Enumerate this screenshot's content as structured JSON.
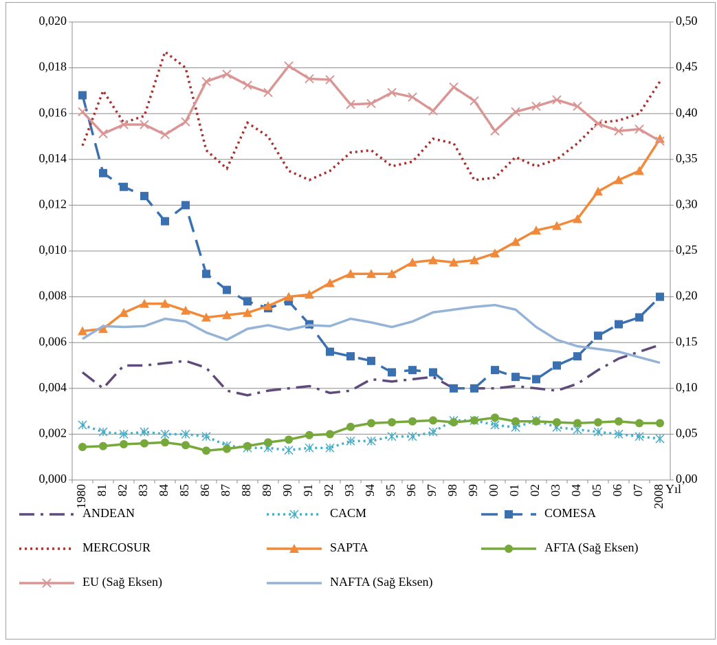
{
  "chart_data": {
    "type": "line",
    "x_label": "Yıl",
    "categories": [
      "1980",
      "81",
      "82",
      "83",
      "84",
      "85",
      "86",
      "87",
      "88",
      "89",
      "90",
      "91",
      "92",
      "93",
      "94",
      "95",
      "96",
      "97",
      "98",
      "99",
      "00",
      "01",
      "02",
      "03",
      "04",
      "05",
      "06",
      "07",
      "2008"
    ],
    "ylim": [
      0,
      0.02
    ],
    "yticks": [
      {
        "value": 0,
        "label": "0,000"
      },
      {
        "value": 0.002,
        "label": "0,002"
      },
      {
        "value": 0.004,
        "label": "0,004"
      },
      {
        "value": 0.006,
        "label": "0,006"
      },
      {
        "value": 0.008,
        "label": "0,008"
      },
      {
        "value": 0.01,
        "label": "0,010"
      },
      {
        "value": 0.012,
        "label": "0,012"
      },
      {
        "value": 0.014,
        "label": "0,014"
      },
      {
        "value": 0.016,
        "label": "0,016"
      },
      {
        "value": 0.018,
        "label": "0,018"
      },
      {
        "value": 0.02,
        "label": "0,020"
      }
    ],
    "y2lim": [
      0,
      0.5
    ],
    "y2ticks": [
      {
        "value": 0,
        "label": "0,00"
      },
      {
        "value": 0.05,
        "label": "0,05"
      },
      {
        "value": 0.1,
        "label": "0,10"
      },
      {
        "value": 0.15,
        "label": "0,15"
      },
      {
        "value": 0.2,
        "label": "0,20"
      },
      {
        "value": 0.25,
        "label": "0,25"
      },
      {
        "value": 0.3,
        "label": "0,30"
      },
      {
        "value": 0.35,
        "label": "0,35"
      },
      {
        "value": 0.4,
        "label": "0,40"
      },
      {
        "value": 0.45,
        "label": "0,45"
      },
      {
        "value": 0.5,
        "label": "0,50"
      }
    ],
    "grid": true,
    "legend": "bottom",
    "series": [
      {
        "name": "ANDEAN",
        "color": "#604a7b",
        "line_style": "dash-dot",
        "marker": "none",
        "values": [
          0.0047,
          0.004,
          0.005,
          0.005,
          0.0051,
          0.0052,
          0.0049,
          0.0039,
          0.0037,
          0.0039,
          0.004,
          0.0041,
          0.0038,
          0.0039,
          0.0044,
          0.0043,
          0.0044,
          0.0045,
          0.004,
          0.004,
          0.004,
          0.0041,
          0.004,
          0.0039,
          0.0042,
          0.0048,
          0.0053,
          0.0056,
          0.0059
        ]
      },
      {
        "name": "CACM",
        "color": "#4bacc6",
        "line_style": "dotted",
        "marker": "asterisk",
        "values": [
          0.0024,
          0.0021,
          0.002,
          0.0021,
          0.002,
          0.002,
          0.0019,
          0.0015,
          0.0014,
          0.0014,
          0.0013,
          0.0014,
          0.0014,
          0.0017,
          0.0017,
          0.0019,
          0.0019,
          0.0021,
          0.0026,
          0.0026,
          0.0024,
          0.0023,
          0.0026,
          0.0023,
          0.0022,
          0.0021,
          0.002,
          0.0019,
          0.0018
        ]
      },
      {
        "name": "COMESA",
        "color": "#3a6fb0",
        "line_style": "dashed",
        "marker": "square",
        "values": [
          0.0168,
          0.0134,
          0.0128,
          0.0124,
          0.0113,
          0.012,
          0.009,
          0.0083,
          0.0078,
          0.0075,
          0.0078,
          0.0068,
          0.0056,
          0.0054,
          0.0052,
          0.0047,
          0.0048,
          0.0047,
          0.004,
          0.004,
          0.0048,
          0.0045,
          0.0044,
          0.005,
          0.0054,
          0.0063,
          0.0068,
          0.0071,
          0.008
        ]
      },
      {
        "name": "MERCOSUR",
        "color": "#a9302d",
        "line_style": "dotted",
        "marker": "none",
        "values": [
          0.0146,
          0.017,
          0.0156,
          0.0159,
          0.0187,
          0.018,
          0.0144,
          0.0136,
          0.0156,
          0.015,
          0.0135,
          0.0131,
          0.0135,
          0.0143,
          0.0144,
          0.0137,
          0.0139,
          0.0149,
          0.0147,
          0.0131,
          0.0132,
          0.0141,
          0.0137,
          0.014,
          0.0147,
          0.0156,
          0.0157,
          0.016,
          0.0174
        ]
      },
      {
        "name": "SAPTA",
        "color": "#f08a3a",
        "line_style": "solid",
        "marker": "triangle",
        "values": [
          0.0065,
          0.0066,
          0.0073,
          0.0077,
          0.0077,
          0.0074,
          0.0071,
          0.0072,
          0.0073,
          0.0076,
          0.008,
          0.0081,
          0.0086,
          0.009,
          0.009,
          0.009,
          0.0095,
          0.0096,
          0.0095,
          0.0096,
          0.0099,
          0.0104,
          0.0109,
          0.0111,
          0.0114,
          0.0126,
          0.0131,
          0.0135,
          0.0149
        ]
      },
      {
        "name": "AFTA (Sağ Eksen)",
        "color": "#77a83b",
        "line_style": "solid",
        "marker": "circle",
        "axis": "y2",
        "values": [
          0.036,
          0.037,
          0.039,
          0.04,
          0.041,
          0.038,
          0.032,
          0.034,
          0.037,
          0.041,
          0.044,
          0.049,
          0.05,
          0.058,
          0.062,
          0.063,
          0.064,
          0.065,
          0.063,
          0.065,
          0.068,
          0.064,
          0.064,
          0.063,
          0.062,
          0.063,
          0.064,
          0.062,
          0.062
        ]
      },
      {
        "name": "EU (Sağ Eksen)",
        "color": "#d99694",
        "line_style": "solid",
        "marker": "x",
        "axis": "y2",
        "values": [
          0.402,
          0.378,
          0.388,
          0.388,
          0.377,
          0.391,
          0.435,
          0.443,
          0.431,
          0.423,
          0.452,
          0.438,
          0.437,
          0.41,
          0.411,
          0.423,
          0.418,
          0.403,
          0.429,
          0.414,
          0.381,
          0.402,
          0.408,
          0.415,
          0.408,
          0.389,
          0.381,
          0.383,
          0.37
        ]
      },
      {
        "name": "NAFTA (Sağ Eksen)",
        "color": "#95b3d7",
        "line_style": "solid",
        "marker": "none",
        "axis": "y2",
        "values": [
          0.154,
          0.168,
          0.167,
          0.168,
          0.176,
          0.173,
          0.161,
          0.153,
          0.165,
          0.169,
          0.164,
          0.169,
          0.168,
          0.176,
          0.172,
          0.167,
          0.173,
          0.183,
          0.186,
          0.189,
          0.191,
          0.186,
          0.167,
          0.153,
          0.146,
          0.143,
          0.14,
          0.134,
          0.128
        ]
      }
    ]
  }
}
